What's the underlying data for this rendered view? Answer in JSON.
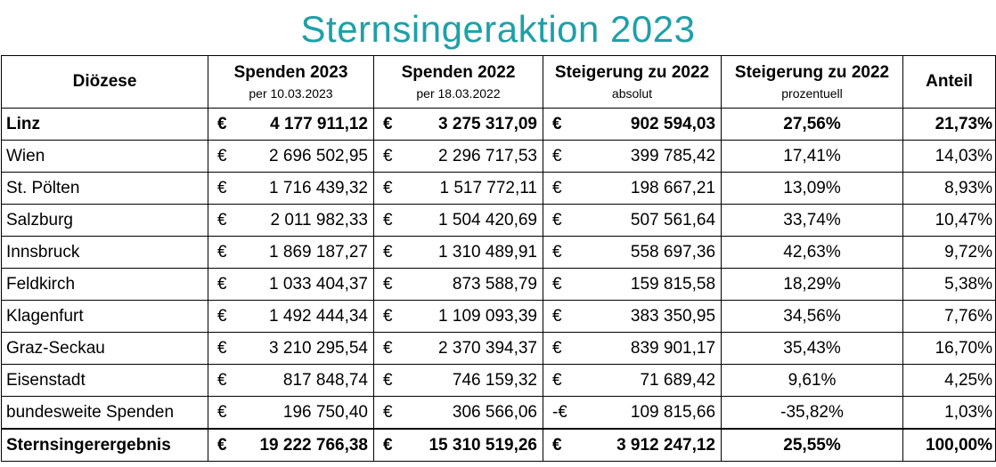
{
  "title": "Sternsingeraktion 2023",
  "table": {
    "header": [
      {
        "title": "Diözese"
      },
      {
        "title": "Spenden 2023",
        "subtitle": "per 10.03.2023"
      },
      {
        "title": "Spenden 2022",
        "subtitle": "per 18.03.2022"
      },
      {
        "title": "Steigerung zu 2022",
        "subtitle": "absolut"
      },
      {
        "title": "Steigerung zu 2022",
        "subtitle": "prozentuell"
      },
      {
        "title": "Anteil"
      }
    ],
    "rows": [
      [
        "Linz",
        "€",
        "4 177 911,12",
        "€",
        "3 275 317,09",
        "€",
        "902 594,03",
        "27,56%",
        "21,73%"
      ],
      [
        "Wien",
        "€",
        "2 696 502,95",
        "€",
        "2 296 717,53",
        "€",
        "399 785,42",
        "17,41%",
        "14,03%"
      ],
      [
        "St. Pölten",
        "€",
        "1 716 439,32",
        "€",
        "1 517 772,11",
        "€",
        "198 667,21",
        "13,09%",
        "8,93%"
      ],
      [
        "Salzburg",
        "€",
        "2 011 982,33",
        "€",
        "1 504 420,69",
        "€",
        "507 561,64",
        "33,74%",
        "10,47%"
      ],
      [
        "Innsbruck",
        "€",
        "1 869 187,27",
        "€",
        "1 310 489,91",
        "€",
        "558 697,36",
        "42,63%",
        "9,72%"
      ],
      [
        "Feldkirch",
        "€",
        "1 033 404,37",
        "€",
        "873 588,79",
        "€",
        "159 815,58",
        "18,29%",
        "5,38%"
      ],
      [
        "Klagenfurt",
        "€",
        "1 492 444,34",
        "€",
        "1 109 093,39",
        "€",
        "383 350,95",
        "34,56%",
        "7,76%"
      ],
      [
        "Graz-Seckau",
        "€",
        "3 210 295,54",
        "€",
        "2 370 394,37",
        "€",
        "839 901,17",
        "35,43%",
        "16,70%"
      ],
      [
        "Eisenstadt",
        "€",
        "817 848,74",
        "€",
        "746 159,32",
        "€",
        "71 689,42",
        "9,61%",
        "4,25%"
      ],
      [
        "bundesweite Spenden",
        "€",
        "196 750,40",
        "€",
        "306 566,06",
        "-€",
        "109 815,66",
        "-35,82%",
        "1,03%"
      ],
      [
        "Sternsingerergebnis",
        "€",
        "19 222 766,38",
        "€",
        "15 310 519,26",
        "€",
        "3 912 247,12",
        "25,55%",
        "100,00%"
      ]
    ]
  }
}
